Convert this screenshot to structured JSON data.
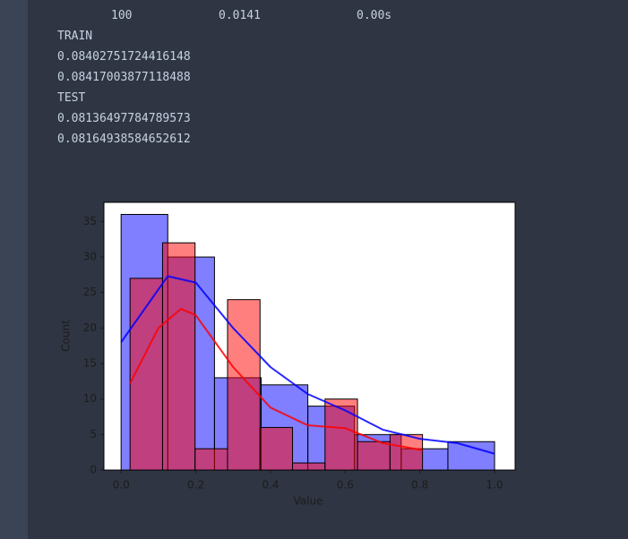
{
  "output": {
    "row": [
      "100",
      "0.0141",
      "0.00s"
    ],
    "lines": [
      "TRAIN",
      "0.08402751724416148",
      "0.08417003877118488",
      "TEST",
      "0.08136497784789573",
      "0.08164938584652612"
    ]
  },
  "chart_data": {
    "type": "histogram",
    "x_label": "Value",
    "y_label": "Count",
    "xlim": [
      -0.046,
      1.055
    ],
    "ylim": [
      0,
      37.7
    ],
    "xticks": [
      {
        "value": 0,
        "label": "0.0"
      },
      0.2,
      0.4,
      0.6,
      0.8,
      {
        "value": 1,
        "label": "1.0"
      }
    ],
    "yticks": [
      0,
      5,
      10,
      15,
      20,
      25,
      30,
      35
    ],
    "series": [
      {
        "color": "#0000ff",
        "bins": [
          0,
          0.125,
          0.25,
          0.375,
          0.5,
          0.625,
          0.75,
          0.875,
          1.0
        ],
        "values": [
          36,
          30,
          13,
          12,
          9,
          5,
          3,
          4
        ],
        "kde_x": [
          0,
          0.125,
          0.2,
          0.3,
          0.4,
          0.5,
          0.6,
          0.7,
          0.8,
          0.9,
          1.0
        ],
        "kde_y": [
          18,
          27.3,
          26.4,
          20,
          14.5,
          10.7,
          8.4,
          5.7,
          4.4,
          3.8,
          2.3
        ]
      },
      {
        "color": "#ff0000",
        "bins": [
          0.024,
          0.111,
          0.198,
          0.285,
          0.372,
          0.459,
          0.546,
          0.633,
          0.72,
          0.807
        ],
        "values": [
          27,
          32,
          3,
          24,
          6,
          1,
          10,
          4,
          5
        ],
        "kde_x": [
          0.024,
          0.1,
          0.16,
          0.2,
          0.3,
          0.4,
          0.5,
          0.6,
          0.7,
          0.807
        ],
        "kde_y": [
          12.2,
          20,
          22.7,
          21.8,
          14.5,
          8.8,
          6.3,
          5.9,
          3.8,
          2.8
        ]
      }
    ]
  }
}
